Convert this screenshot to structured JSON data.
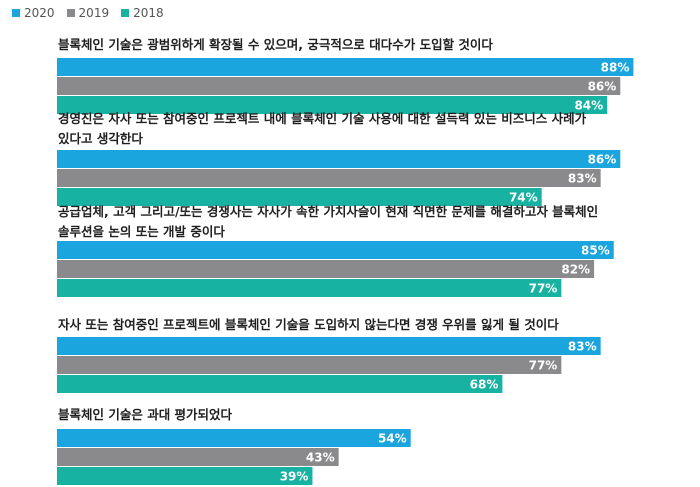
{
  "chart_data": {
    "type": "bar",
    "orientation": "horizontal",
    "legend": {
      "position": "top-left"
    },
    "series": [
      {
        "name": "2020",
        "color": "#1ba5df",
        "values": [
          88,
          86,
          85,
          83,
          54
        ]
      },
      {
        "name": "2019",
        "color": "#8a8a8c",
        "values": [
          86,
          83,
          82,
          77,
          43
        ]
      },
      {
        "name": "2018",
        "color": "#18b2a2",
        "values": [
          84,
          74,
          77,
          68,
          39
        ]
      }
    ],
    "categories": [
      [
        "블록체인 기술은 광범위하게 확장될 수 있으며, 궁극적으로 대다수가 도입할 것이다"
      ],
      [
        "경영진은 자사 또는 참여중인 프로젝트 내에 블록체인 기술 사용에 대한 설득력 있는 비즈니스 사례가",
        "있다고 생각한다"
      ],
      [
        "공급업체, 고객 그리고/또는 경쟁사는 자사가 속한 가치사슬이 현재 직면한 문제를 해결하고자 블록체인",
        "솔루션을 논의 또는 개발 중이다"
      ],
      [
        "자사 또는 참여중인 프로젝트에 블록체인 기술을 도입하지 않는다면 경쟁 우위를 잃게 될 것이다"
      ],
      [
        "블록체인 기술은 과대 평가되었다"
      ]
    ],
    "value_suffix": "%",
    "xlim": [
      0,
      100
    ],
    "grid": false
  }
}
